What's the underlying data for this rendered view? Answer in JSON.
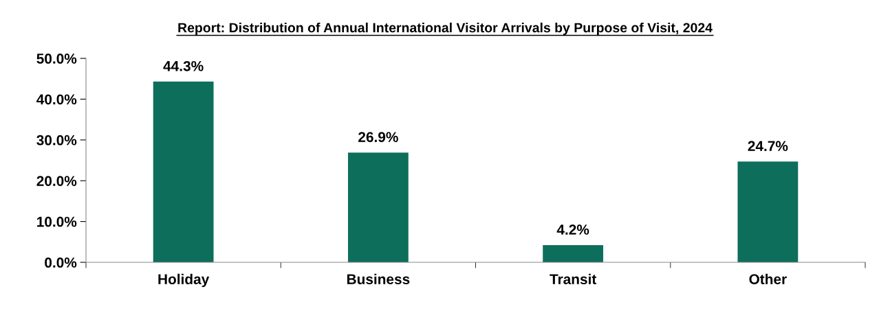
{
  "chart_data": {
    "type": "bar",
    "title": "Report: Distribution of Annual International Visitor Arrivals by Purpose of Visit, 2024",
    "categories": [
      "Holiday",
      "Business",
      "Transit",
      "Other"
    ],
    "values": [
      44.3,
      26.9,
      4.2,
      24.7
    ],
    "value_labels": [
      "44.3%",
      "26.9%",
      "4.2%",
      "24.7%"
    ],
    "color": "#0e6e5c",
    "ylim": [
      0,
      50
    ],
    "yticks": [
      {
        "value": 0,
        "label": "0.0%"
      },
      {
        "value": 10,
        "label": "10.0%"
      },
      {
        "value": 20,
        "label": "20.0%"
      },
      {
        "value": 30,
        "label": "30.0%"
      },
      {
        "value": 40,
        "label": "40.0%"
      },
      {
        "value": 50,
        "label": "50.0%"
      }
    ],
    "grid": false,
    "legend": false
  }
}
